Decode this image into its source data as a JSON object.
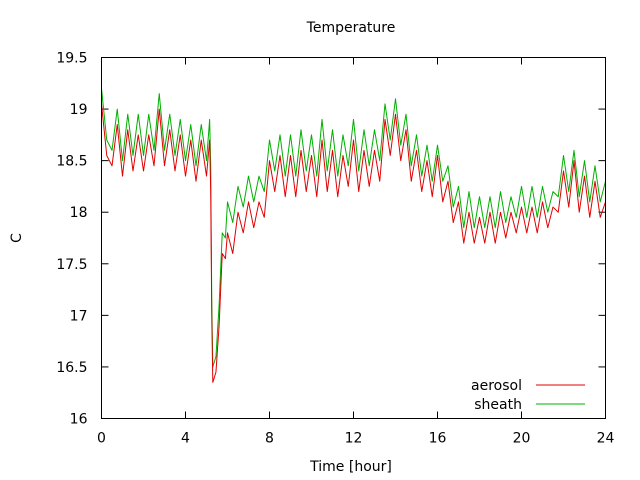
{
  "chart_data": {
    "type": "line",
    "title": "Temperature",
    "xlabel": "Time [hour]",
    "ylabel": "C",
    "xlim": [
      0,
      24
    ],
    "ylim": [
      16,
      19.5
    ],
    "xticks": [
      0,
      4,
      8,
      12,
      16,
      20,
      24
    ],
    "yticks": [
      16,
      16.5,
      17,
      17.5,
      18,
      18.5,
      19,
      19.5
    ],
    "grid": false,
    "legend_position": "bottom-right",
    "series": [
      {
        "name": "aerosol",
        "color": "#e00000",
        "points": [
          [
            0.0,
            19.05
          ],
          [
            0.25,
            18.55
          ],
          [
            0.5,
            18.45
          ],
          [
            0.75,
            18.85
          ],
          [
            1.0,
            18.35
          ],
          [
            1.25,
            18.8
          ],
          [
            1.5,
            18.4
          ],
          [
            1.75,
            18.75
          ],
          [
            2.0,
            18.4
          ],
          [
            2.25,
            18.75
          ],
          [
            2.5,
            18.45
          ],
          [
            2.75,
            19.0
          ],
          [
            3.0,
            18.45
          ],
          [
            3.25,
            18.8
          ],
          [
            3.5,
            18.4
          ],
          [
            3.75,
            18.75
          ],
          [
            4.0,
            18.35
          ],
          [
            4.25,
            18.7
          ],
          [
            4.5,
            18.3
          ],
          [
            4.75,
            18.7
          ],
          [
            5.0,
            18.35
          ],
          [
            5.15,
            18.7
          ],
          [
            5.2,
            18.2
          ],
          [
            5.25,
            17.0
          ],
          [
            5.3,
            16.35
          ],
          [
            5.45,
            16.45
          ],
          [
            5.6,
            16.9
          ],
          [
            5.75,
            17.6
          ],
          [
            5.9,
            17.55
          ],
          [
            6.0,
            17.8
          ],
          [
            6.25,
            17.6
          ],
          [
            6.5,
            18.0
          ],
          [
            6.75,
            17.8
          ],
          [
            7.0,
            18.1
          ],
          [
            7.25,
            17.85
          ],
          [
            7.5,
            18.1
          ],
          [
            7.75,
            17.95
          ],
          [
            8.0,
            18.5
          ],
          [
            8.25,
            18.2
          ],
          [
            8.5,
            18.55
          ],
          [
            8.75,
            18.15
          ],
          [
            9.0,
            18.55
          ],
          [
            9.25,
            18.15
          ],
          [
            9.5,
            18.6
          ],
          [
            9.75,
            18.2
          ],
          [
            10.0,
            18.55
          ],
          [
            10.25,
            18.15
          ],
          [
            10.5,
            18.7
          ],
          [
            10.75,
            18.2
          ],
          [
            11.0,
            18.6
          ],
          [
            11.25,
            18.15
          ],
          [
            11.5,
            18.55
          ],
          [
            11.75,
            18.25
          ],
          [
            12.0,
            18.7
          ],
          [
            12.25,
            18.2
          ],
          [
            12.5,
            18.6
          ],
          [
            12.75,
            18.25
          ],
          [
            13.0,
            18.6
          ],
          [
            13.25,
            18.3
          ],
          [
            13.5,
            18.9
          ],
          [
            13.75,
            18.55
          ],
          [
            14.0,
            18.95
          ],
          [
            14.25,
            18.5
          ],
          [
            14.5,
            18.8
          ],
          [
            14.75,
            18.3
          ],
          [
            15.0,
            18.6
          ],
          [
            15.25,
            18.2
          ],
          [
            15.5,
            18.5
          ],
          [
            15.75,
            18.15
          ],
          [
            16.0,
            18.55
          ],
          [
            16.25,
            18.1
          ],
          [
            16.5,
            18.3
          ],
          [
            16.75,
            17.9
          ],
          [
            17.0,
            18.1
          ],
          [
            17.25,
            17.7
          ],
          [
            17.5,
            18.0
          ],
          [
            17.75,
            17.7
          ],
          [
            18.0,
            17.95
          ],
          [
            18.25,
            17.7
          ],
          [
            18.5,
            18.0
          ],
          [
            18.75,
            17.7
          ],
          [
            19.0,
            18.0
          ],
          [
            19.25,
            17.75
          ],
          [
            19.5,
            18.0
          ],
          [
            19.75,
            17.8
          ],
          [
            20.0,
            18.05
          ],
          [
            20.25,
            17.8
          ],
          [
            20.5,
            18.05
          ],
          [
            20.75,
            17.8
          ],
          [
            21.0,
            18.1
          ],
          [
            21.25,
            17.85
          ],
          [
            21.5,
            18.05
          ],
          [
            21.75,
            18.0
          ],
          [
            22.0,
            18.4
          ],
          [
            22.25,
            18.05
          ],
          [
            22.5,
            18.5
          ],
          [
            22.75,
            18.0
          ],
          [
            23.0,
            18.35
          ],
          [
            23.25,
            17.95
          ],
          [
            23.5,
            18.3
          ],
          [
            23.75,
            17.95
          ],
          [
            24.0,
            18.1
          ]
        ]
      },
      {
        "name": "sheath",
        "color": "#00b000",
        "points": [
          [
            0.0,
            19.2
          ],
          [
            0.25,
            18.7
          ],
          [
            0.5,
            18.6
          ],
          [
            0.75,
            19.0
          ],
          [
            1.0,
            18.5
          ],
          [
            1.25,
            18.95
          ],
          [
            1.5,
            18.55
          ],
          [
            1.75,
            18.95
          ],
          [
            2.0,
            18.55
          ],
          [
            2.25,
            18.95
          ],
          [
            2.5,
            18.6
          ],
          [
            2.75,
            19.15
          ],
          [
            3.0,
            18.6
          ],
          [
            3.25,
            18.95
          ],
          [
            3.5,
            18.55
          ],
          [
            3.75,
            18.9
          ],
          [
            4.0,
            18.5
          ],
          [
            4.25,
            18.85
          ],
          [
            4.5,
            18.45
          ],
          [
            4.75,
            18.85
          ],
          [
            5.0,
            18.5
          ],
          [
            5.15,
            18.9
          ],
          [
            5.2,
            18.45
          ],
          [
            5.25,
            17.15
          ],
          [
            5.3,
            16.5
          ],
          [
            5.45,
            16.6
          ],
          [
            5.6,
            17.1
          ],
          [
            5.75,
            17.8
          ],
          [
            5.9,
            17.75
          ],
          [
            6.0,
            18.1
          ],
          [
            6.25,
            17.9
          ],
          [
            6.5,
            18.25
          ],
          [
            6.75,
            18.05
          ],
          [
            7.0,
            18.35
          ],
          [
            7.25,
            18.1
          ],
          [
            7.5,
            18.35
          ],
          [
            7.75,
            18.2
          ],
          [
            8.0,
            18.7
          ],
          [
            8.25,
            18.4
          ],
          [
            8.5,
            18.75
          ],
          [
            8.75,
            18.35
          ],
          [
            9.0,
            18.75
          ],
          [
            9.25,
            18.35
          ],
          [
            9.5,
            18.8
          ],
          [
            9.75,
            18.4
          ],
          [
            10.0,
            18.75
          ],
          [
            10.25,
            18.35
          ],
          [
            10.5,
            18.9
          ],
          [
            10.75,
            18.4
          ],
          [
            11.0,
            18.8
          ],
          [
            11.25,
            18.35
          ],
          [
            11.5,
            18.75
          ],
          [
            11.75,
            18.45
          ],
          [
            12.0,
            18.9
          ],
          [
            12.25,
            18.4
          ],
          [
            12.5,
            18.8
          ],
          [
            12.75,
            18.45
          ],
          [
            13.0,
            18.8
          ],
          [
            13.25,
            18.5
          ],
          [
            13.5,
            19.05
          ],
          [
            13.75,
            18.7
          ],
          [
            14.0,
            19.1
          ],
          [
            14.25,
            18.65
          ],
          [
            14.5,
            18.95
          ],
          [
            14.75,
            18.45
          ],
          [
            15.0,
            18.75
          ],
          [
            15.25,
            18.35
          ],
          [
            15.5,
            18.65
          ],
          [
            15.75,
            18.3
          ],
          [
            16.0,
            18.65
          ],
          [
            16.25,
            18.3
          ],
          [
            16.5,
            18.45
          ],
          [
            16.75,
            18.05
          ],
          [
            17.0,
            18.25
          ],
          [
            17.25,
            17.85
          ],
          [
            17.5,
            18.2
          ],
          [
            17.75,
            17.85
          ],
          [
            18.0,
            18.15
          ],
          [
            18.25,
            17.85
          ],
          [
            18.5,
            18.15
          ],
          [
            18.75,
            17.85
          ],
          [
            19.0,
            18.2
          ],
          [
            19.25,
            17.9
          ],
          [
            19.5,
            18.15
          ],
          [
            19.75,
            17.95
          ],
          [
            20.0,
            18.25
          ],
          [
            20.25,
            17.95
          ],
          [
            20.5,
            18.25
          ],
          [
            20.75,
            17.95
          ],
          [
            21.0,
            18.25
          ],
          [
            21.25,
            18.0
          ],
          [
            21.5,
            18.2
          ],
          [
            21.75,
            18.15
          ],
          [
            22.0,
            18.55
          ],
          [
            22.25,
            18.2
          ],
          [
            22.5,
            18.6
          ],
          [
            22.75,
            18.15
          ],
          [
            23.0,
            18.5
          ],
          [
            23.25,
            18.1
          ],
          [
            23.5,
            18.45
          ],
          [
            23.75,
            18.1
          ],
          [
            24.0,
            18.3
          ]
        ]
      }
    ]
  }
}
